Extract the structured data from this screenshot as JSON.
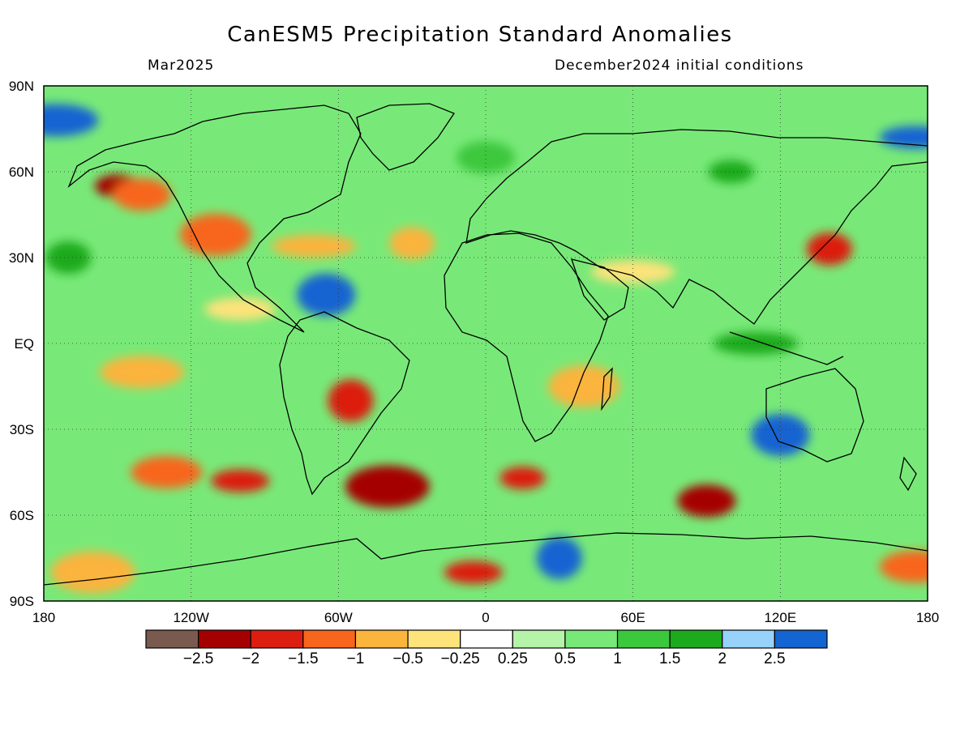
{
  "title": "CanESM5 Precipitation Standard Anomalies",
  "valid_month": "Mar2025",
  "init_conditions": "December2024 initial conditions",
  "lat_labels": [
    "90N",
    "60N",
    "30N",
    "EQ",
    "30S",
    "60S",
    "90S"
  ],
  "lon_labels": [
    "180",
    "120W",
    "60W",
    "0",
    "60E",
    "120E",
    "180"
  ],
  "colorbar": {
    "colors": [
      "#7a5a4e",
      "#a50000",
      "#dc1e10",
      "#f7661c",
      "#fbb43c",
      "#fde37a",
      "#ffffff",
      "#b4f3a8",
      "#78e978",
      "#3cc83c",
      "#1eaa1e",
      "#96d2fa",
      "#1464d2"
    ],
    "labels": [
      "-2.5",
      "-2",
      "-1.5",
      "-1",
      "-0.5",
      "-0.25",
      "0.25",
      "0.5",
      "1",
      "1.5",
      "2",
      "2.5"
    ]
  },
  "anomaly_regions": [
    {
      "lon": -150,
      "lat": 55,
      "value": -2.5
    },
    {
      "lon": -140,
      "lat": 52,
      "value": -1.5
    },
    {
      "lon": -110,
      "lat": 38,
      "value": -1.5
    },
    {
      "lon": -70,
      "lat": 34,
      "value": -1.0
    },
    {
      "lon": -30,
      "lat": 35,
      "value": -1.0
    },
    {
      "lon": -65,
      "lat": 17,
      "value": 2.5
    },
    {
      "lon": -100,
      "lat": 12,
      "value": -0.5
    },
    {
      "lon": -140,
      "lat": -10,
      "value": -1.0
    },
    {
      "lon": -55,
      "lat": -20,
      "value": -2.0
    },
    {
      "lon": -100,
      "lat": -48,
      "value": -2.0
    },
    {
      "lon": -130,
      "lat": -45,
      "value": -1.5
    },
    {
      "lon": -40,
      "lat": -50,
      "value": -2.5
    },
    {
      "lon": 15,
      "lat": -47,
      "value": -2.0
    },
    {
      "lon": 90,
      "lat": -55,
      "value": -2.5
    },
    {
      "lon": 40,
      "lat": -15,
      "value": -1.0
    },
    {
      "lon": 60,
      "lat": 25,
      "value": -0.5
    },
    {
      "lon": 140,
      "lat": 33,
      "value": -2.0
    },
    {
      "lon": 120,
      "lat": -32,
      "value": 2.5
    },
    {
      "lon": 175,
      "lat": 72,
      "value": 2.5
    },
    {
      "lon": -175,
      "lat": 78,
      "value": 2.5
    },
    {
      "lon": 30,
      "lat": -75,
      "value": 2.5
    },
    {
      "lon": -5,
      "lat": -80,
      "value": -2.0
    },
    {
      "lon": 175,
      "lat": -78,
      "value": -1.5
    },
    {
      "lon": -160,
      "lat": -80,
      "value": -1.0
    },
    {
      "lon": 100,
      "lat": 60,
      "value": 1.5
    },
    {
      "lon": 0,
      "lat": 65,
      "value": 1.0
    },
    {
      "lon": -20,
      "lat": 5,
      "value": 0.5
    },
    {
      "lon": 110,
      "lat": 0,
      "value": 1.5
    },
    {
      "lon": -170,
      "lat": 30,
      "value": 1.5
    }
  ]
}
